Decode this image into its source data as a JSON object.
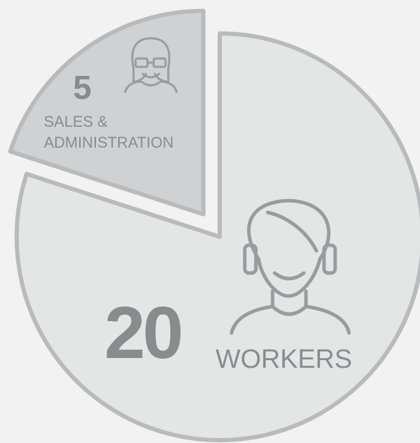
{
  "chart_data": {
    "type": "pie",
    "categories": [
      "WORKERS",
      "SALES & ADMINISTRATION"
    ],
    "values": [
      20,
      5
    ],
    "colors": [
      "#e4e5e5",
      "#d0d1d2"
    ]
  }
}
